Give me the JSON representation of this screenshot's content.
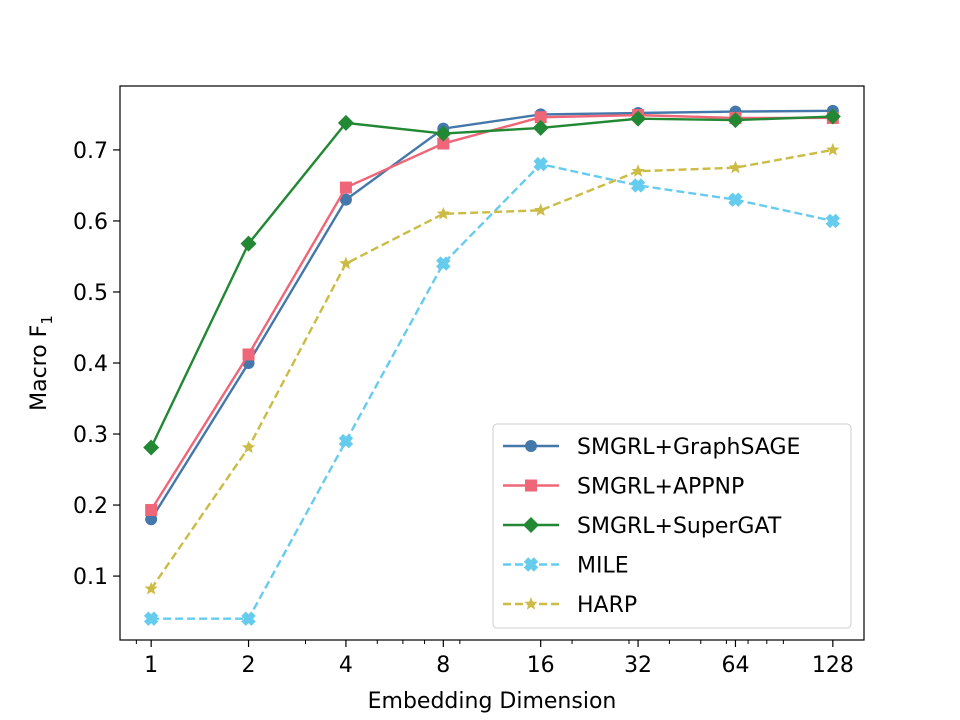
{
  "chart_data": {
    "type": "line",
    "title": "",
    "xlabel": "Embedding Dimension",
    "ylabel": "Macro F",
    "ylabel_subscript": "1",
    "xscale": "log2",
    "x": [
      1,
      2,
      4,
      8,
      16,
      32,
      64,
      128
    ],
    "x_tick_labels": [
      "1",
      "2",
      "4",
      "8",
      "16",
      "32",
      "64",
      "128"
    ],
    "ylim": [
      0.01,
      0.79
    ],
    "y_ticks": [
      0.1,
      0.2,
      0.3,
      0.4,
      0.5,
      0.6,
      0.7
    ],
    "y_tick_labels": [
      "0.1",
      "0.2",
      "0.3",
      "0.4",
      "0.5",
      "0.6",
      "0.7"
    ],
    "legend_position": "lower-right",
    "series": [
      {
        "name": "SMGRL+GraphSAGE",
        "color": "#4477aa",
        "marker": "circle",
        "linestyle": "solid",
        "values": [
          0.18,
          0.4,
          0.63,
          0.73,
          0.75,
          0.752,
          0.754,
          0.755
        ]
      },
      {
        "name": "SMGRL+APPNP",
        "color": "#ee6677",
        "marker": "square",
        "linestyle": "solid",
        "values": [
          0.193,
          0.412,
          0.647,
          0.709,
          0.746,
          0.749,
          0.745,
          0.745
        ]
      },
      {
        "name": "SMGRL+SuperGAT",
        "color": "#228833",
        "marker": "diamond",
        "linestyle": "solid",
        "values": [
          0.281,
          0.568,
          0.738,
          0.723,
          0.731,
          0.744,
          0.742,
          0.747
        ]
      },
      {
        "name": "MILE",
        "color": "#66ccee",
        "marker": "x",
        "linestyle": "dashed",
        "values": [
          0.04,
          0.04,
          0.29,
          0.54,
          0.68,
          0.65,
          0.63,
          0.6
        ]
      },
      {
        "name": "HARP",
        "color": "#ccbb44",
        "marker": "star",
        "linestyle": "dashed",
        "values": [
          0.082,
          0.281,
          0.54,
          0.61,
          0.615,
          0.67,
          0.675,
          0.7
        ]
      }
    ]
  }
}
